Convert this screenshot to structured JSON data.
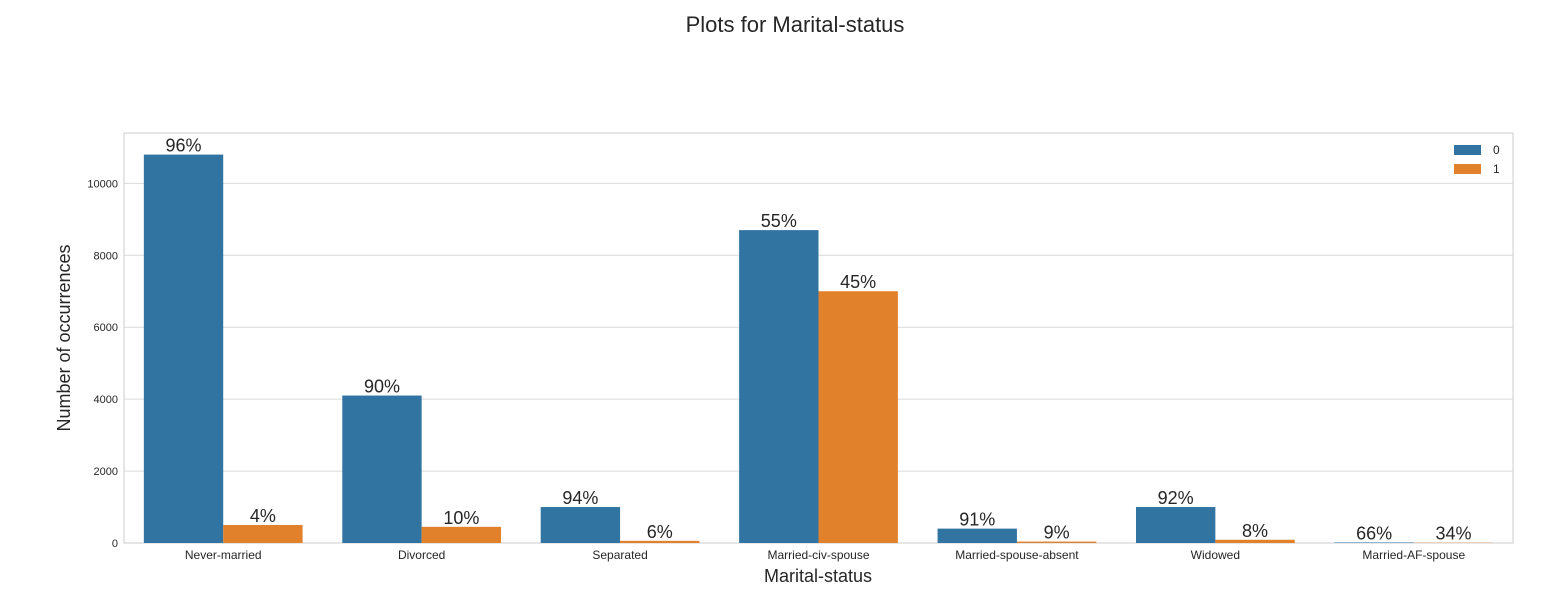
{
  "chart_data": {
    "type": "bar",
    "title": "Plots for Marital-status",
    "xlabel": "Marital-status",
    "ylabel": "Number of occurrences",
    "categories": [
      "Never-married",
      "Divorced",
      "Separated",
      "Married-civ-spouse",
      "Married-spouse-absent",
      "Widowed",
      "Married-AF-spouse"
    ],
    "series": [
      {
        "name": "0",
        "color": "#3274a1",
        "values": [
          10800,
          4100,
          1000,
          8700,
          400,
          1000,
          15
        ],
        "labels": [
          "96%",
          "90%",
          "94%",
          "55%",
          "91%",
          "92%",
          "66%"
        ]
      },
      {
        "name": "1",
        "color": "#e1812c",
        "values": [
          500,
          450,
          60,
          7000,
          40,
          90,
          8
        ],
        "labels": [
          "4%",
          "10%",
          "6%",
          "45%",
          "9%",
          "8%",
          "34%"
        ]
      }
    ],
    "ylim": [
      0,
      11400
    ],
    "yticks": [
      0,
      2000,
      4000,
      6000,
      8000,
      10000
    ],
    "grid": true,
    "legend": "top-right"
  }
}
